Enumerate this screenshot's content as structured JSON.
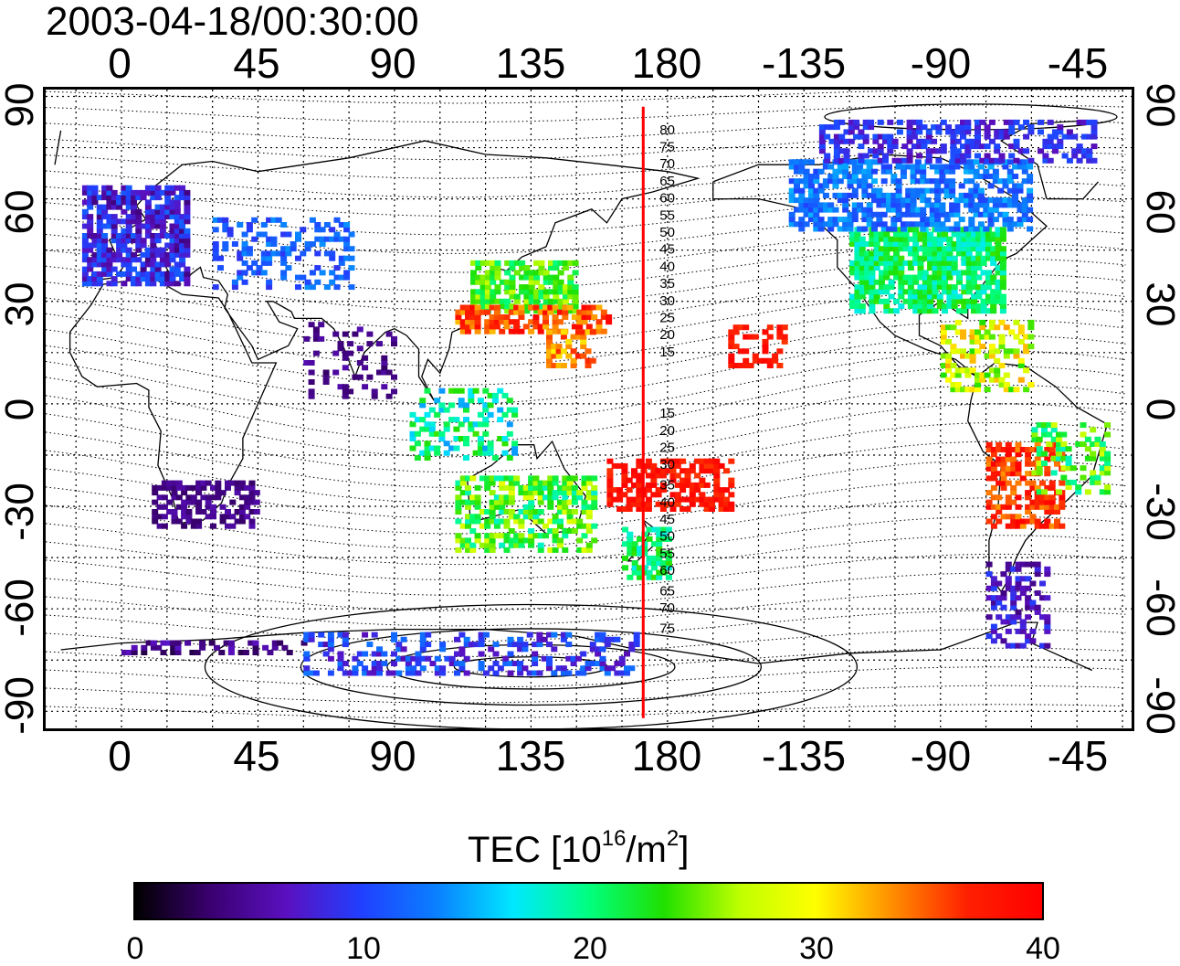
{
  "title": "2003-04-18/00:30:00",
  "top_axis": [
    "0",
    "45",
    "90",
    "135",
    "180",
    "-135",
    "-90",
    "-45"
  ],
  "bottom_axis": [
    "0",
    "45",
    "90",
    "135",
    "180",
    "-135",
    "-90",
    "-45"
  ],
  "left_axis": [
    "90",
    "60",
    "30",
    "0",
    "-30",
    "-60",
    "-90"
  ],
  "right_axis": [
    "90",
    "60",
    "30",
    "0",
    "-30",
    "-60",
    "-90"
  ],
  "map": {
    "lon_range": [
      -25,
      333
    ],
    "lat_range": [
      -95,
      92
    ],
    "meridian_line_lon": 172,
    "meridian_line_color": "#ff0000",
    "contour_labels": [
      "80",
      "75",
      "70",
      "65",
      "60",
      "55",
      "50",
      "45",
      "40",
      "35",
      "30",
      "25",
      "20",
      "15",
      "15",
      "20",
      "25",
      "30",
      "35",
      "40",
      "45",
      "50",
      "55",
      "60",
      "65",
      "70",
      "75"
    ]
  },
  "colorbar": {
    "title_main": "TEC  [10",
    "title_sup1": "16",
    "title_mid": "/m",
    "title_sup2": "2",
    "title_end": "]",
    "min": 0,
    "max": 40,
    "ticks": [
      "0",
      "10",
      "20",
      "30",
      "40"
    ],
    "colormap": [
      "#000000",
      "#3a0070",
      "#5a10c0",
      "#2040ff",
      "#0a80ff",
      "#00e8ff",
      "#00ff80",
      "#20e000",
      "#c0ff00",
      "#ffff00",
      "#ff9000",
      "#ff2000",
      "#ff0000"
    ]
  }
}
